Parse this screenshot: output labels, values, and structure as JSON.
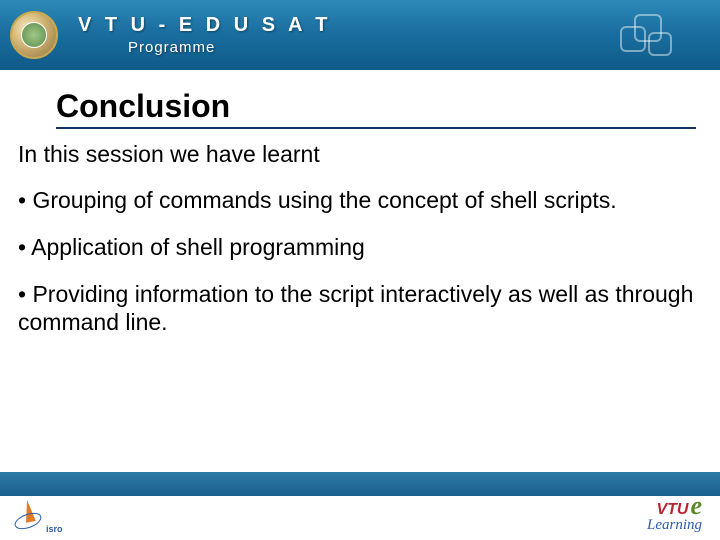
{
  "header": {
    "title": "V T U  -  E D U S A T",
    "subtitle": "Programme"
  },
  "slide": {
    "title": "Conclusion",
    "intro": "In this session we have learnt",
    "bullets": [
      "• Grouping of commands using the concept of shell scripts.",
      "• Application of shell programming",
      "• Providing information to the script interactively as well as through command line."
    ]
  },
  "footer": {
    "left_text": "isro",
    "right_brand1": "VTU",
    "right_brand2": "e",
    "right_sub": "Learning"
  },
  "colors": {
    "header_gradient_top": "#2d8ab8",
    "header_gradient_bottom": "#0f5a88",
    "title_underline": "#10355f",
    "footer_bar": "#1a5f8c",
    "vtu_red": "#b8252f",
    "e_green": "#5a8a2a",
    "learning_blue": "#2a5caa",
    "isro_orange": "#e07b2a"
  }
}
